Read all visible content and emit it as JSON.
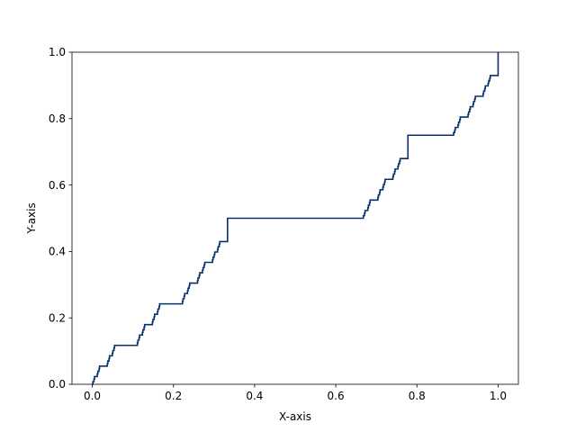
{
  "chart_data": {
    "type": "line",
    "title": "",
    "xlabel": "X-axis",
    "ylabel": "Y-axis",
    "xlim": [
      -0.05,
      1.05
    ],
    "ylim": [
      0.0,
      1.0
    ],
    "xticks": [
      0.0,
      0.2,
      0.4,
      0.6,
      0.8,
      1.0
    ],
    "xtick_labels": [
      "0.0",
      "0.2",
      "0.4",
      "0.6",
      "0.8",
      "1.0"
    ],
    "yticks": [
      0.0,
      0.2,
      0.4,
      0.6,
      0.8,
      1.0
    ],
    "ytick_labels": [
      "0.0",
      "0.2",
      "0.4",
      "0.6",
      "0.8",
      "1.0"
    ],
    "grid": false,
    "legend": "none",
    "series": [
      {
        "color": "#08306b",
        "step": "post",
        "x": [
          0.0,
          0.0014,
          0.0041,
          0.0055,
          0.0123,
          0.0137,
          0.0165,
          0.0178,
          0.037,
          0.0384,
          0.0412,
          0.0425,
          0.0494,
          0.0508,
          0.0535,
          0.0549,
          0.1111,
          0.1125,
          0.1152,
          0.1166,
          0.1235,
          0.1248,
          0.1276,
          0.129,
          0.1481,
          0.1495,
          0.1523,
          0.1536,
          0.1605,
          0.1619,
          0.1646,
          0.166,
          0.2222,
          0.2236,
          0.2263,
          0.2277,
          0.2346,
          0.236,
          0.2387,
          0.2401,
          0.2593,
          0.2606,
          0.2634,
          0.2648,
          0.2716,
          0.273,
          0.2757,
          0.2771,
          0.2963,
          0.2977,
          0.3004,
          0.3018,
          0.3086,
          0.31,
          0.3128,
          0.3141,
          0.3333,
          0.6667,
          0.668,
          0.6708,
          0.6722,
          0.679,
          0.6804,
          0.6831,
          0.6845,
          0.7037,
          0.7051,
          0.7078,
          0.7092,
          0.716,
          0.7174,
          0.7202,
          0.7215,
          0.7407,
          0.7421,
          0.7449,
          0.7462,
          0.7531,
          0.7545,
          0.7572,
          0.7586,
          0.7778,
          0.8889,
          0.8903,
          0.893,
          0.8944,
          0.9012,
          0.9026,
          0.9053,
          0.9067,
          0.9259,
          0.9273,
          0.93,
          0.9314,
          0.9383,
          0.9396,
          0.9424,
          0.9438,
          0.963,
          0.9643,
          0.9671,
          0.9684,
          0.9753,
          0.9767,
          0.9794,
          0.9808,
          1.0
        ],
        "y": [
          0.0,
          0.0078,
          0.0156,
          0.0234,
          0.0313,
          0.0391,
          0.0469,
          0.0547,
          0.0625,
          0.0703,
          0.0781,
          0.0859,
          0.0938,
          0.1016,
          0.1094,
          0.1172,
          0.125,
          0.1328,
          0.1406,
          0.1484,
          0.1563,
          0.1641,
          0.1719,
          0.1797,
          0.1875,
          0.1953,
          0.2031,
          0.2109,
          0.2188,
          0.2266,
          0.2344,
          0.2422,
          0.25,
          0.2578,
          0.2656,
          0.2734,
          0.2813,
          0.2891,
          0.2969,
          0.3047,
          0.3125,
          0.3203,
          0.3281,
          0.3359,
          0.3438,
          0.3516,
          0.3594,
          0.3672,
          0.375,
          0.3828,
          0.3906,
          0.3984,
          0.4063,
          0.4141,
          0.4219,
          0.4297,
          0.5,
          0.5,
          0.5078,
          0.5156,
          0.5234,
          0.5313,
          0.5391,
          0.5469,
          0.5547,
          0.5625,
          0.5703,
          0.5781,
          0.5859,
          0.5938,
          0.6016,
          0.6094,
          0.6172,
          0.625,
          0.6328,
          0.6406,
          0.6484,
          0.6563,
          0.6641,
          0.6719,
          0.6797,
          0.75,
          0.75,
          0.7578,
          0.7656,
          0.7734,
          0.7813,
          0.7891,
          0.7969,
          0.8047,
          0.8125,
          0.8203,
          0.8281,
          0.8359,
          0.8438,
          0.8516,
          0.8594,
          0.8672,
          0.875,
          0.8828,
          0.8906,
          0.8984,
          0.9063,
          0.9141,
          0.9219,
          0.9297,
          1.0
        ]
      }
    ]
  }
}
